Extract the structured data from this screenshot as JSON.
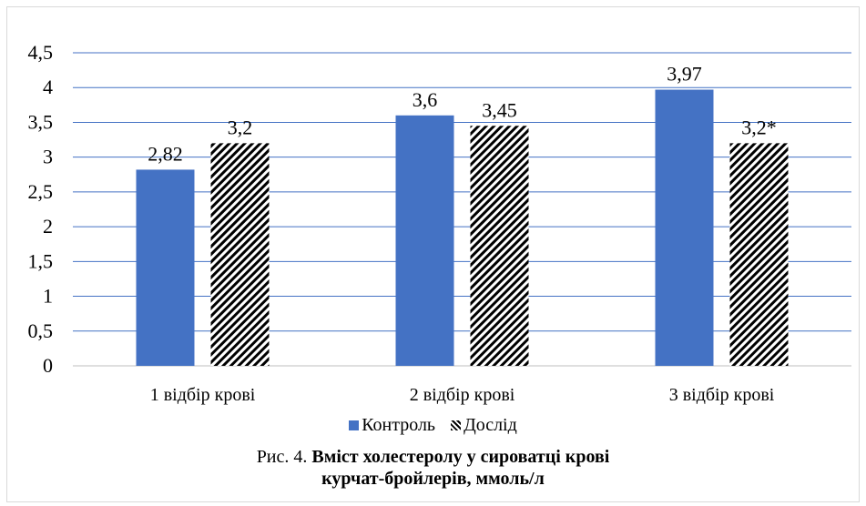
{
  "chart_data": {
    "type": "bar",
    "categories": [
      "1 відбір крові",
      "2 відбір крові",
      "3 відбір крові"
    ],
    "series": [
      {
        "name": "Контроль",
        "values": [
          2.82,
          3.6,
          3.97
        ],
        "labels": [
          "2,82",
          "3,6",
          "3,97"
        ],
        "color": "#4472c4",
        "fill": "solid"
      },
      {
        "name": "Дослід",
        "values": [
          3.2,
          3.45,
          3.2
        ],
        "labels": [
          "3,2",
          "3,45",
          "3,2*"
        ],
        "color": "#000000",
        "fill": "diagonal-stripes"
      }
    ],
    "ylim": [
      0,
      4.5
    ],
    "yticks": [
      0,
      0.5,
      1,
      1.5,
      2,
      2.5,
      3,
      3.5,
      4,
      4.5
    ],
    "ytick_labels": [
      "0",
      "0,5",
      "1",
      "1,5",
      "2",
      "2,5",
      "3",
      "3,5",
      "4",
      "4,5"
    ],
    "grid": true,
    "gridline_color": "#4472c4",
    "legend_position": "bottom"
  },
  "caption": {
    "prefix": "Рис. 4. ",
    "title_line1": "Вміст холестеролу у сироватці крові",
    "title_line2": "курчат-бройлерів",
    "units": ", ммоль/л"
  }
}
